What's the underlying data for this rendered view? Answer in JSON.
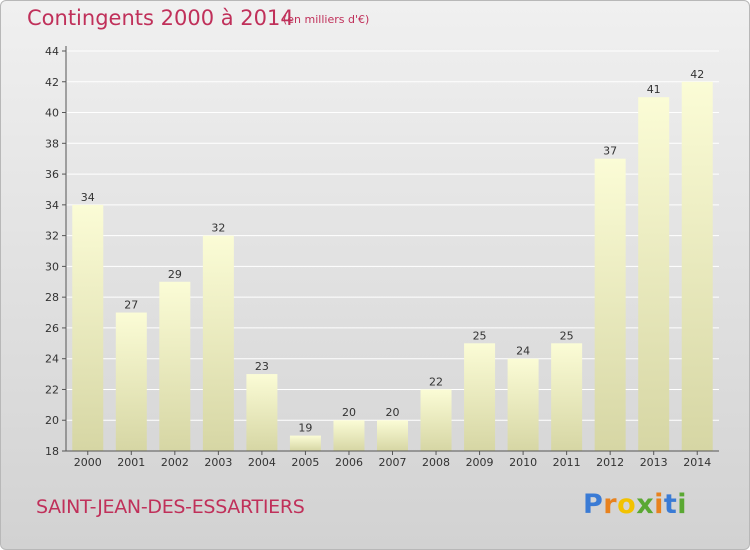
{
  "header": {
    "title": "Contingents 2000 à 2014",
    "subtitle": "(en milliers d'€)"
  },
  "footer": {
    "commune": "SAINT-JEAN-DES-ESSARTIERS",
    "brand": "Proxiti"
  },
  "colors": {
    "title": "#c0305a",
    "bar_top": "#fbfcd6",
    "bar_bottom": "#d6d6a4",
    "grid": "#ffffff",
    "axis": "#555555",
    "brand_letters": [
      "#3a7bd5",
      "#e8821e",
      "#f2c200",
      "#5aa832",
      "#e8821e",
      "#3a7bd5",
      "#5aa832"
    ]
  },
  "chart_data": {
    "type": "bar",
    "categories": [
      "2000",
      "2001",
      "2002",
      "2003",
      "2004",
      "2005",
      "2006",
      "2007",
      "2008",
      "2009",
      "2010",
      "2011",
      "2012",
      "2013",
      "2014"
    ],
    "values": [
      34,
      27,
      29,
      32,
      23,
      19,
      20,
      20,
      22,
      25,
      24,
      25,
      37,
      41,
      42
    ],
    "title": "Contingents 2000 à 2014",
    "ylabel": "",
    "xlabel": "",
    "ylim": [
      18,
      44
    ],
    "yticks": [
      18,
      20,
      22,
      24,
      26,
      28,
      30,
      32,
      34,
      36,
      38,
      40,
      42,
      44
    ],
    "grid": true,
    "data_labels": true
  }
}
